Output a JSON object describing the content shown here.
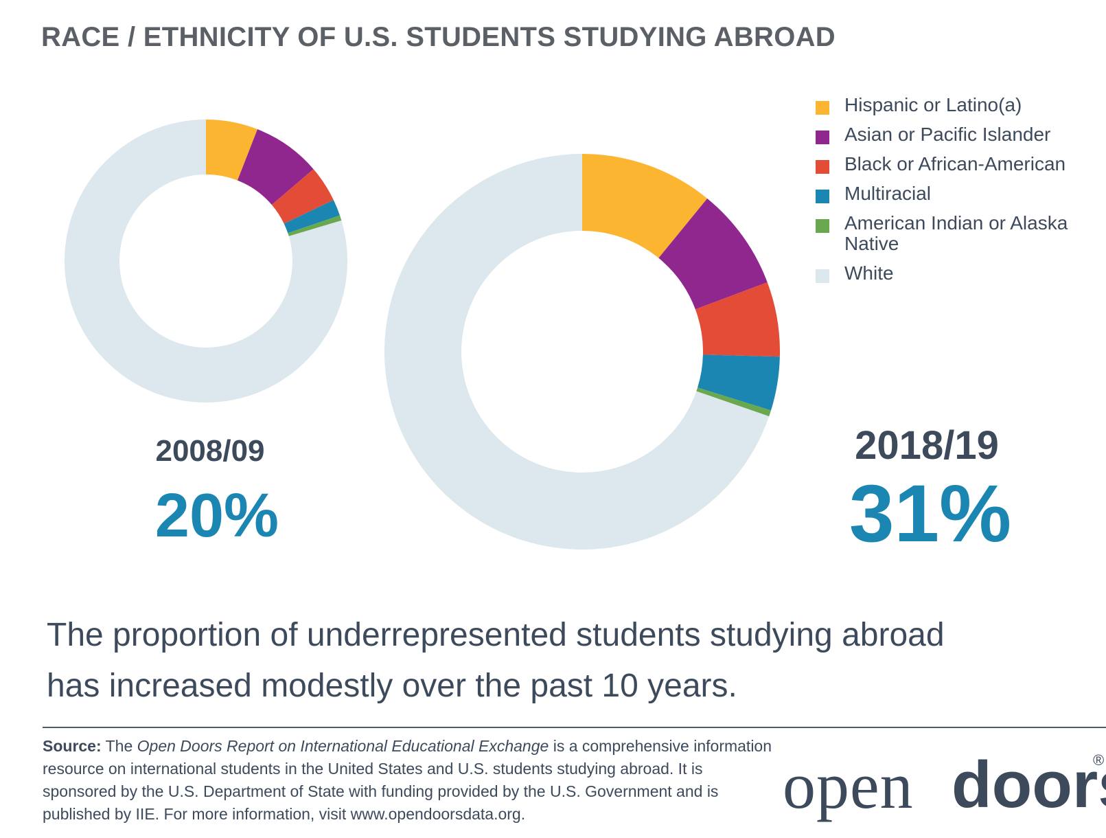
{
  "title": "RACE / ETHNICITY OF U.S. STUDENTS STUDYING ABROAD",
  "chart_data": [
    {
      "type": "pie",
      "variant": "donut",
      "year": "2008/09",
      "headline_percent": "20%",
      "categories": [
        "Hispanic or Latino(a)",
        "Asian or Pacific Islander",
        "Black or African-American",
        "Multiracial",
        "American Indian or Alaska Native",
        "White"
      ],
      "values": [
        6.0,
        7.9,
        4.2,
        1.9,
        0.6,
        80.5
      ]
    },
    {
      "type": "pie",
      "variant": "donut",
      "year": "2018/19",
      "headline_percent": "31%",
      "categories": [
        "Hispanic or Latino(a)",
        "Asian or Pacific Islander",
        "Black or African-American",
        "Multiracial",
        "American Indian or Alaska Native",
        "White"
      ],
      "values": [
        10.9,
        8.4,
        6.1,
        4.4,
        0.5,
        69.7
      ]
    }
  ],
  "legend": {
    "placement": "top-right",
    "items": [
      {
        "label": "Hispanic or Latino(a)",
        "color": "#fbb530"
      },
      {
        "label": "Asian or Pacific Islander",
        "color": "#8f278f"
      },
      {
        "label": "Black or African-American",
        "color": "#e34c37"
      },
      {
        "label": "Multiracial",
        "color": "#1b86b1"
      },
      {
        "label": "American Indian or Alaska Native",
        "color": "#6aa84f"
      },
      {
        "label": "White",
        "color": "#dce7ee"
      }
    ]
  },
  "summary": {
    "line1": "The proportion of underrepresented students studying abroad",
    "line2": "has increased modestly over the past 10 years."
  },
  "source": {
    "label": "Source:",
    "text_before": " The ",
    "report_title": "Open Doors Report on International Educational Exchange",
    "text_after": " is a comprehensive information resource on international students in the United States and U.S. students studying abroad. It is sponsored by the U.S. Department of State with funding provided by the U.S. Government and is published by IIE. For more information, visit www.opendoorsdata.org."
  },
  "logo": {
    "part1": "open",
    "part2": "doors",
    "mark": "®"
  },
  "colors": {
    "accent": "#1b86b1",
    "text": "#3d4a5c",
    "title": "#5b5f66"
  }
}
